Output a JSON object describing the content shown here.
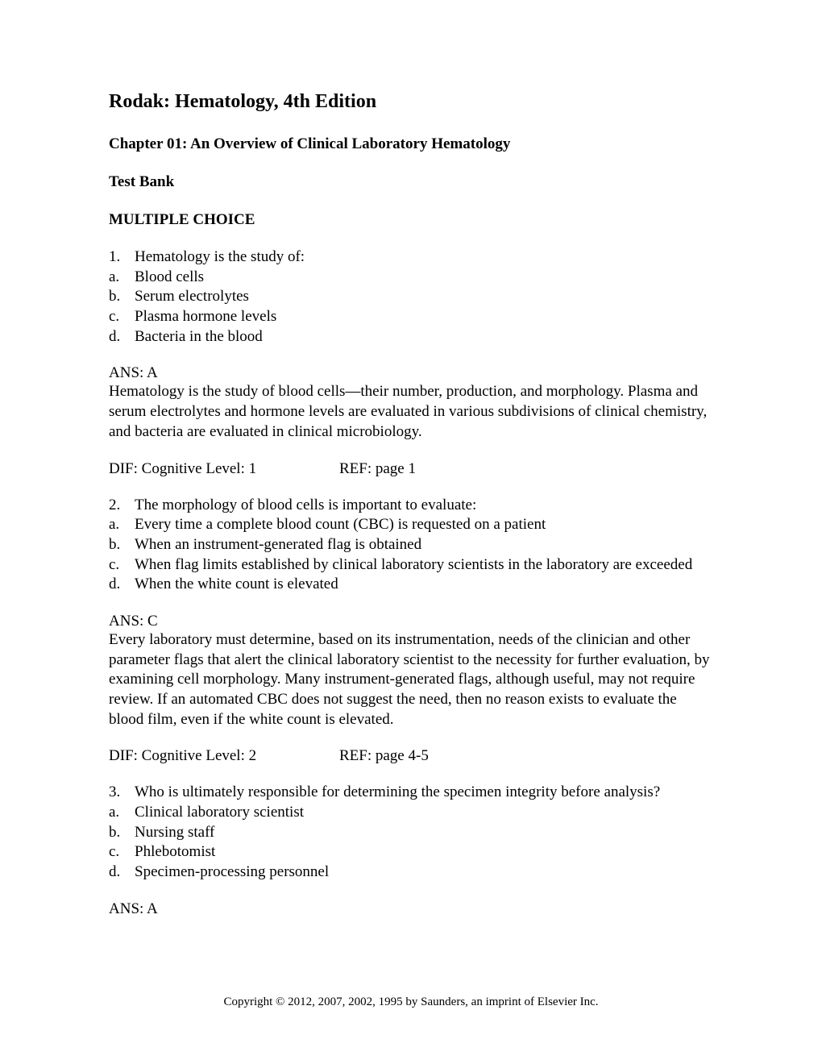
{
  "title": "Rodak: Hematology, 4th Edition",
  "chapter": "Chapter 01: An Overview of Clinical Laboratory Hematology",
  "test_bank": "Test Bank",
  "section_header": "MULTIPLE CHOICE",
  "questions": [
    {
      "num": "1.",
      "text": "Hematology is the study of:",
      "options": [
        {
          "letter": "a.",
          "text": "Blood cells"
        },
        {
          "letter": "b.",
          "text": "Serum electrolytes"
        },
        {
          "letter": "c.",
          "text": "Plasma hormone levels"
        },
        {
          "letter": "d.",
          "text": "Bacteria in the blood"
        }
      ],
      "answer": "ANS:   A",
      "explanation": "Hematology is the study of blood cells—their number, production, and morphology. Plasma and serum electrolytes and hormone levels are evaluated in various subdivisions of clinical chemistry, and bacteria are evaluated in clinical microbiology.",
      "dif": "DIF:    Cognitive Level: 1",
      "ref": "REF:    page 1"
    },
    {
      "num": "2.",
      "text": "The morphology of blood cells is important to evaluate:",
      "options": [
        {
          "letter": "a.",
          "text": "Every time a complete blood count (CBC) is requested on a patient"
        },
        {
          "letter": "b.",
          "text": "When an instrument-generated flag is obtained"
        },
        {
          "letter": "c.",
          "text": "When flag limits established by clinical laboratory scientists in the laboratory are exceeded"
        },
        {
          "letter": "d.",
          "text": "When the white count is elevated"
        }
      ],
      "answer": "ANS:   C",
      "explanation": "Every laboratory must determine, based on its instrumentation, needs of the clinician and other parameter flags that alert the clinical laboratory scientist to the necessity for further evaluation, by examining cell morphology. Many instrument-generated flags, although useful, may not require review. If an automated CBC does not suggest the need, then no reason exists to evaluate the blood film, even if the white count is elevated.",
      "dif": "DIF:    Cognitive Level: 2",
      "ref": "REF:    page 4-5"
    },
    {
      "num": "3.",
      "text": "Who is ultimately responsible for determining the specimen integrity before analysis?",
      "options": [
        {
          "letter": "a.",
          "text": "Clinical laboratory scientist"
        },
        {
          "letter": "b.",
          "text": "Nursing staff"
        },
        {
          "letter": "c.",
          "text": "Phlebotomist"
        },
        {
          "letter": "d.",
          "text": "Specimen-processing personnel"
        }
      ],
      "answer": "ANS:   A",
      "explanation": "",
      "dif": "",
      "ref": ""
    }
  ],
  "footer": "Copyright © 2012, 2007, 2002, 1995 by Saunders, an imprint of Elsevier Inc."
}
